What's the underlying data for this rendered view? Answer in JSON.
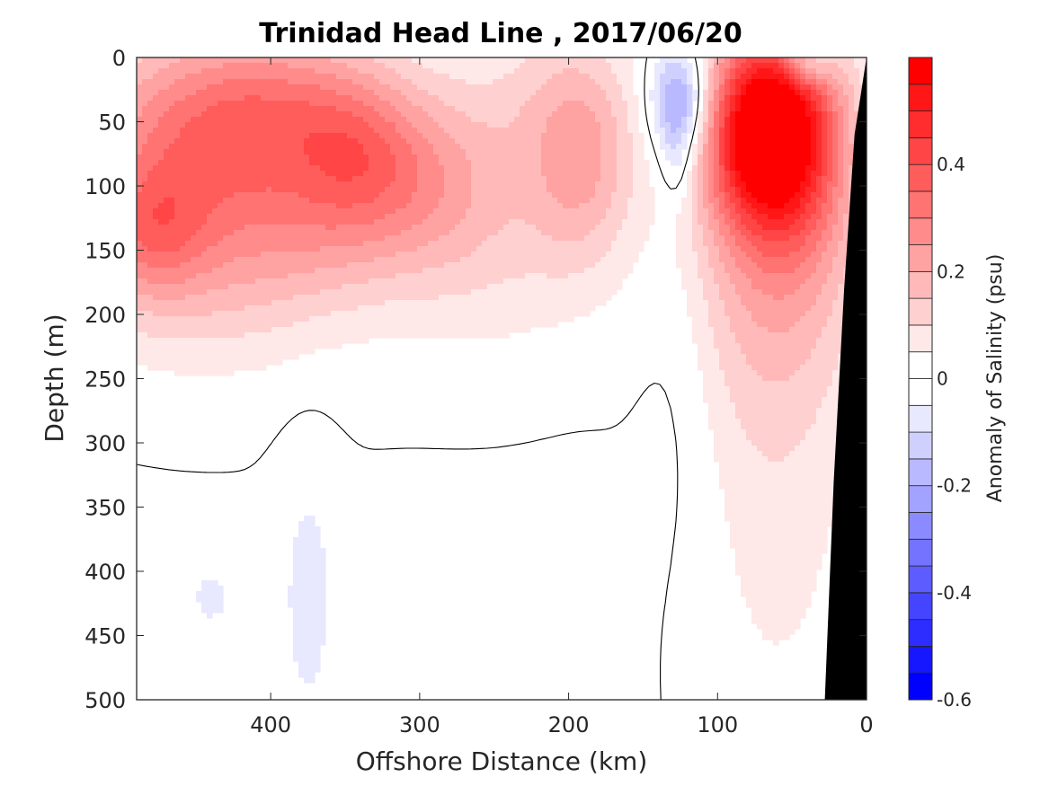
{
  "chart_data": {
    "type": "heatmap",
    "subtype": "filled-contour-section",
    "title": "Trinidad Head Line , 2017/06/20",
    "xlabel": "Offshore Distance (km)",
    "ylabel": "Depth (m)",
    "xlim": [
      490,
      0
    ],
    "x_reversed": true,
    "ylim": [
      500,
      0
    ],
    "y_reversed": true,
    "xticks": [
      400,
      300,
      200,
      100,
      0
    ],
    "xtick_labels": [
      "400",
      "300",
      "200",
      "100",
      "0"
    ],
    "yticks": [
      0,
      50,
      100,
      150,
      200,
      250,
      300,
      350,
      400,
      450,
      500
    ],
    "ytick_labels": [
      "0",
      "50",
      "100",
      "150",
      "200",
      "250",
      "300",
      "350",
      "400",
      "450",
      "500"
    ],
    "grid": false,
    "colorbar": {
      "label": "Anomaly of Salinity (psu)",
      "range": [
        -0.6,
        0.6
      ],
      "level_step": 0.05,
      "ticks": [
        -0.6,
        -0.4,
        -0.2,
        0,
        0.2,
        0.4
      ],
      "tick_labels": [
        "-0.6",
        "-0.4",
        "-0.2",
        "0",
        "0.2",
        "0.4"
      ],
      "colormap": "blue-white-red",
      "low_color": "#0000ff",
      "zero_color": "#ffffff",
      "high_color": "#ff0000",
      "placement": "right"
    },
    "contour_lines": [
      {
        "level": 0,
        "color": "#000000"
      }
    ],
    "bathymetry": {
      "color": "#000000",
      "coast_profile": [
        [
          0,
          0
        ],
        [
          8,
          60
        ],
        [
          15,
          180
        ],
        [
          22,
          330
        ],
        [
          28,
          500
        ]
      ]
    },
    "features": [
      {
        "name": "offshore-surface-positive-anomaly",
        "x_range_km": [
          490,
          160
        ],
        "depth_range_m": [
          0,
          230
        ],
        "peak_value": 0.3
      },
      {
        "name": "core-positive-440km",
        "x_km": 435,
        "depth_m": 65,
        "value": 0.3
      },
      {
        "name": "core-positive-480km",
        "x_km": 480,
        "depth_m": 135,
        "value": 0.28
      },
      {
        "name": "core-positive-315km",
        "x_km": 312,
        "depth_m": 95,
        "value": 0.25
      },
      {
        "name": "nearshore-strong-positive-core",
        "x_km": 75,
        "depth_m": 50,
        "value": 0.6
      },
      {
        "name": "negative-anomaly-125km",
        "x_km": 125,
        "depth_m": 35,
        "value": -0.17
      },
      {
        "name": "deep-negative-375km",
        "x_km": 375,
        "depth_m": 420,
        "value": -0.06
      },
      {
        "name": "deep-negative-440km",
        "x_km": 440,
        "depth_m": 420,
        "value": -0.06
      },
      {
        "name": "nearshore-deep-positive-tongue",
        "x_km": 60,
        "depth_m": 300,
        "value": 0.08
      }
    ],
    "blobs": [
      {
        "x": 440,
        "d": 65,
        "a": 0.22,
        "sx": 60,
        "sd": 55
      },
      {
        "x": 480,
        "d": 135,
        "a": 0.16,
        "sx": 25,
        "sd": 35
      },
      {
        "x": 385,
        "d": 30,
        "a": 0.1,
        "sx": 50,
        "sd": 40
      },
      {
        "x": 345,
        "d": 75,
        "a": 0.14,
        "sx": 30,
        "sd": 40
      },
      {
        "x": 300,
        "d": 95,
        "a": 0.16,
        "sx": 40,
        "sd": 50
      },
      {
        "x": 365,
        "d": 140,
        "a": 0.07,
        "sx": 40,
        "sd": 40
      },
      {
        "x": 450,
        "d": 170,
        "a": 0.09,
        "sx": 60,
        "sd": 50
      },
      {
        "x": 190,
        "d": 80,
        "a": 0.16,
        "sx": 25,
        "sd": 60
      },
      {
        "x": 215,
        "d": 40,
        "a": 0.09,
        "sx": 40,
        "sd": 60
      },
      {
        "x": 250,
        "d": 160,
        "a": 0.07,
        "sx": 50,
        "sd": 60
      },
      {
        "x": 430,
        "d": 90,
        "a": 0.12,
        "sx": 90,
        "sd": 90
      },
      {
        "x": 70,
        "d": 55,
        "a": 0.55,
        "sx": 28,
        "sd": 55
      },
      {
        "x": 65,
        "d": 150,
        "a": 0.16,
        "sx": 45,
        "sd": 90
      },
      {
        "x": 60,
        "d": 320,
        "a": 0.075,
        "sx": 40,
        "sd": 170
      },
      {
        "x": 40,
        "d": 60,
        "a": 0.18,
        "sx": 25,
        "sd": 70
      },
      {
        "x": 125,
        "d": 35,
        "a": -0.28,
        "sx": 14,
        "sd": 30
      },
      {
        "x": 127,
        "d": 85,
        "a": -0.08,
        "sx": 8,
        "sd": 25
      },
      {
        "x": 375,
        "d": 420,
        "a": -0.065,
        "sx": 14,
        "sd": 80
      },
      {
        "x": 440,
        "d": 420,
        "a": -0.06,
        "sx": 12,
        "sd": 20
      },
      {
        "x": 125,
        "d": 200,
        "a": -0.04,
        "sx": 20,
        "sd": 120
      },
      {
        "x": 40,
        "d": 5,
        "a": -0.2,
        "sx": 12,
        "sd": 12
      }
    ],
    "background_value": -0.005
  }
}
